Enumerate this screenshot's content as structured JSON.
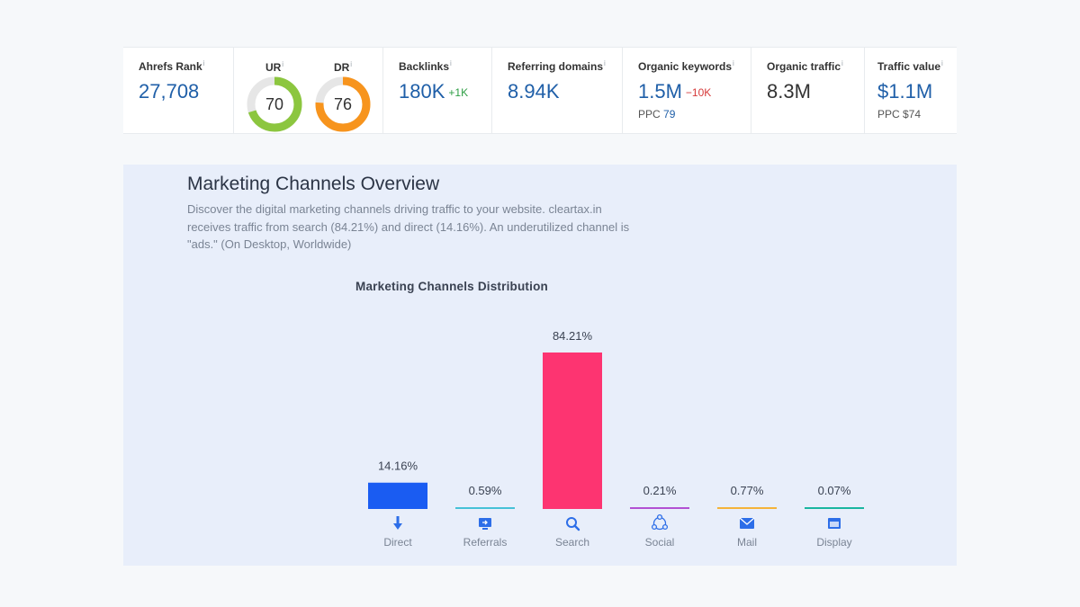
{
  "metrics": {
    "ahrefs_rank": {
      "label": "Ahrefs Rank",
      "value": "27,708"
    },
    "ur": {
      "label": "UR",
      "value": "70",
      "score": 70,
      "color": "#8cc63f"
    },
    "dr": {
      "label": "DR",
      "value": "76",
      "score": 76,
      "color": "#f7941d"
    },
    "backlinks": {
      "label": "Backlinks",
      "value": "180K",
      "delta": "+1K"
    },
    "referring_domains": {
      "label": "Referring domains",
      "value": "8.94K"
    },
    "organic_keywords": {
      "label": "Organic keywords",
      "value": "1.5M",
      "delta": "−10K",
      "ppc_label": "PPC",
      "ppc_value": "79"
    },
    "organic_traffic": {
      "label": "Organic traffic",
      "value": "8.3M"
    },
    "traffic_value": {
      "label": "Traffic value",
      "value": "$1.1M",
      "ppc": "PPC $74"
    },
    "info_glyph": "i"
  },
  "panel": {
    "title": "Marketing Channels Overview",
    "description": "Discover the digital marketing channels driving traffic to your website. cleartax.in receives traffic from search (84.21%) and direct (14.16%). An underutilized channel is \"ads.\" (On Desktop, Worldwide)"
  },
  "chart_data": {
    "type": "bar",
    "title": "Marketing Channels Distribution",
    "categories": [
      "Direct",
      "Referrals",
      "Search",
      "Social",
      "Mail",
      "Display"
    ],
    "values": [
      14.16,
      0.59,
      84.21,
      0.21,
      0.77,
      0.07
    ],
    "value_labels": [
      "14.16%",
      "0.59%",
      "84.21%",
      "0.21%",
      "0.77%",
      "0.07%"
    ],
    "colors": [
      "#1a5cf2",
      "#46c1d7",
      "#fd3471",
      "#b250d3",
      "#f5b339",
      "#1ab5a0"
    ],
    "icons": [
      "arrow-down-icon",
      "referral-monitor-icon",
      "search-icon",
      "social-share-icon",
      "mail-icon",
      "display-icon"
    ],
    "xlabel": "",
    "ylabel": "",
    "ylim": [
      0,
      84.21
    ],
    "grid": false,
    "legend": "none"
  }
}
